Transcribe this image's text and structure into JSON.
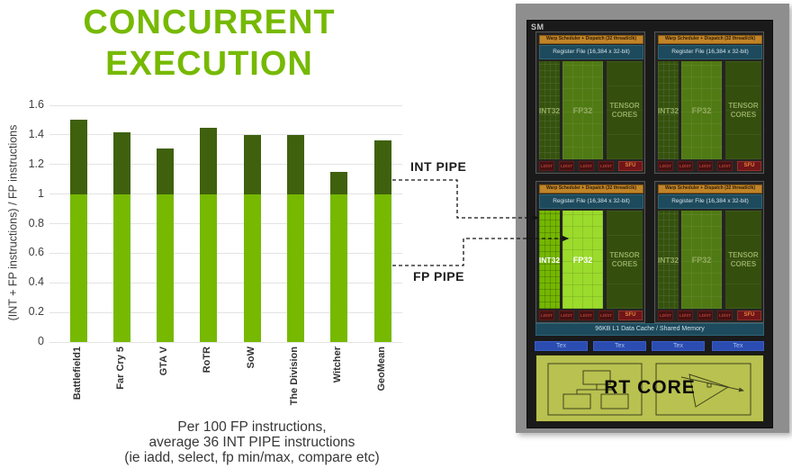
{
  "title": {
    "line1": "CONCURRENT",
    "line2": "EXECUTION"
  },
  "chart_data": {
    "type": "bar",
    "stacked": true,
    "categories": [
      "Battlefield1",
      "Far Cry 5",
      "GTA V",
      "RoTR",
      "SoW",
      "The Division",
      "Witcher",
      "GeoMean"
    ],
    "series": [
      {
        "name": "FP PIPE",
        "color": "#76b900",
        "values": [
          1.0,
          1.0,
          1.0,
          1.0,
          1.0,
          1.0,
          1.0,
          1.0
        ]
      },
      {
        "name": "INT PIPE",
        "color": "#3f610d",
        "values": [
          0.5,
          0.42,
          0.31,
          0.45,
          0.4,
          0.4,
          0.15,
          0.36
        ]
      }
    ],
    "totals": [
      1.5,
      1.42,
      1.31,
      1.45,
      1.4,
      1.4,
      1.15,
      1.36
    ],
    "title": "",
    "xlabel": "",
    "ylabel": "(INT + FP instructions) / FP instructions",
    "ylim": [
      0,
      1.6
    ],
    "yticks": [
      "0",
      "0.2",
      "0.4",
      "0.6",
      "0.8",
      "1",
      "1.2",
      "1.4",
      "1.6"
    ],
    "grid": true,
    "legend_position": "none"
  },
  "annotations": {
    "int_pipe": "INT PIPE",
    "fp_pipe": "FP PIPE"
  },
  "caption": {
    "line1": "Per 100 FP instructions,",
    "line2": "average 36 INT PIPE instructions",
    "line3": "(ie iadd, select, fp min/max, compare etc)"
  },
  "sm": {
    "label": "SM",
    "warp_label": "Warp Scheduler + Dispatch (32 thread/clk)",
    "register_label": "Register File (16,384 x 32-bit)",
    "int32_label": "INT32",
    "fp32_label": "FP32",
    "tensor_line1": "TENSOR",
    "tensor_line2": "CORES",
    "ldst_label": "LD/ST",
    "sfu_label": "SFU",
    "l1_label": "96KB L1 Data Cache / Shared Memory",
    "tex_label": "Tex",
    "rt_label": "RT CORE"
  },
  "colors": {
    "nvidia_green": "#76b900",
    "dark_green": "#3f610d",
    "highlight_fp32": "#9bdb2c",
    "frame_gray": "#8e8e8e",
    "panel_black": "#1a1a1a",
    "warp_orange": "#c08428",
    "register_teal": "#1d4a5c",
    "ldst_red": "#451111",
    "sfu_red": "#701519",
    "tex_blue": "#2b4cb0",
    "rt_olive": "#b9c150"
  }
}
